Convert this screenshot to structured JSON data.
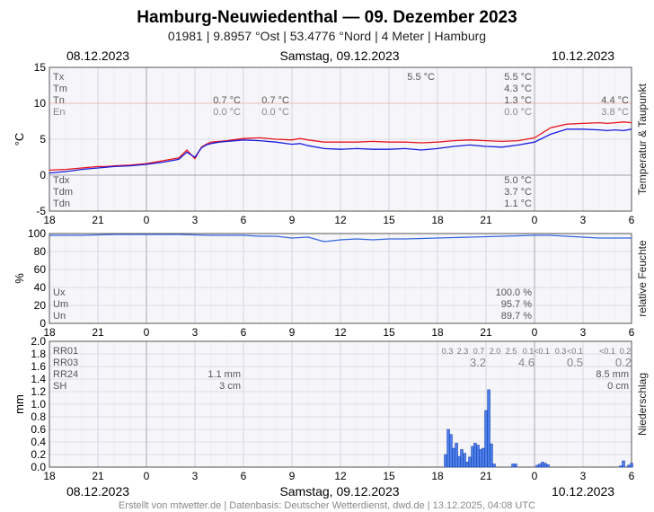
{
  "header": {
    "title": "Hamburg-Neuwiedenthal  —  09. Dezember 2023",
    "subtitle": "01981  |  9.8957 °Ost  |  53.4776 °Nord  |  4 Meter  |  Hamburg"
  },
  "dates": {
    "left": "08.12.2023",
    "center": "Samstag, 09.12.2023",
    "right": "10.12.2023"
  },
  "footer": "Erstellt von mtwetter.de | Datenbasis: Deutscher Wetterdienst, dwd.de | 13.12.2025, 04:08 UTC",
  "colors": {
    "temp": "#e8141b",
    "dew": "#1a1adc",
    "dark": "#7a1030",
    "hum": "#3366dd",
    "bar": "#4a7ee8",
    "barEdge": "#1c3fae"
  },
  "chart_data": [
    {
      "type": "line",
      "ylabel": "°C",
      "side_label": "Temperatur & Taupunkt",
      "ylim": [
        -5,
        15
      ],
      "yticks": [
        -5,
        0,
        5,
        10,
        15
      ],
      "x_hours_from": 18,
      "x_ticklabels": [
        "18",
        "21",
        "0",
        "3",
        "6",
        "9",
        "12",
        "15",
        "18",
        "21",
        "0",
        "3",
        "6"
      ],
      "series": [
        {
          "name": "temperature",
          "x": [
            0,
            1,
            2,
            3,
            3.5,
            4,
            5,
            6,
            7,
            8,
            8.5,
            9,
            9.4,
            9.7,
            10,
            10.5,
            11,
            12,
            13,
            14,
            15,
            15.5,
            16,
            17,
            18,
            19,
            20,
            21,
            22,
            23,
            24,
            25,
            26,
            27,
            28,
            29,
            30,
            31,
            32,
            33,
            34,
            34.5,
            35,
            35.5,
            36
          ],
          "y": [
            0.7,
            0.8,
            1.0,
            1.2,
            1.2,
            1.3,
            1.4,
            1.6,
            2.0,
            2.4,
            3.5,
            2.3,
            3.9,
            4.3,
            4.6,
            4.7,
            4.8,
            5.1,
            5.2,
            5.0,
            4.9,
            5.1,
            4.9,
            4.6,
            4.6,
            4.6,
            4.7,
            4.6,
            4.6,
            4.5,
            4.6,
            4.8,
            4.9,
            4.8,
            4.7,
            4.8,
            5.2,
            6.6,
            7.1,
            7.2,
            7.3,
            7.2,
            7.3,
            7.4,
            7.3
          ]
        },
        {
          "name": "dew_point",
          "x": [
            0,
            1,
            2,
            3,
            3.5,
            4,
            5,
            6,
            7,
            8,
            8.5,
            9,
            9.4,
            9.7,
            10,
            10.5,
            11,
            12,
            13,
            14,
            15,
            15.5,
            16,
            17,
            18,
            19,
            20,
            21,
            22,
            23,
            24,
            25,
            26,
            27,
            28,
            29,
            30,
            31,
            32,
            33,
            34,
            34.5,
            35,
            35.5,
            36
          ],
          "y": [
            0.3,
            0.5,
            0.8,
            1.0,
            1.1,
            1.2,
            1.3,
            1.5,
            1.8,
            2.2,
            3.2,
            2.5,
            3.8,
            4.2,
            4.4,
            4.6,
            4.7,
            4.9,
            4.8,
            4.6,
            4.3,
            4.4,
            4.1,
            3.7,
            3.6,
            3.7,
            3.6,
            3.6,
            3.7,
            3.5,
            3.7,
            4.0,
            4.2,
            4.0,
            3.9,
            4.2,
            4.6,
            5.7,
            6.4,
            6.4,
            6.3,
            6.2,
            6.3,
            6.2,
            6.4
          ]
        }
      ],
      "annotations": {
        "labels_top": [
          "Tx",
          "Tm",
          "Tn",
          "En"
        ],
        "labels_bottom": [
          "Tdx",
          "Tdm",
          "Tdn"
        ],
        "day0_Tn": "0.7 °C",
        "day0_En": "0.0 °C",
        "day1_Tn": "0.7 °C",
        "day1_En": "0.0 °C",
        "mid_Tx": "5.5 °C",
        "day2_Tx": "5.5 °C",
        "day2_Tm": "4.3 °C",
        "day2_Tn": "1.3 °C",
        "day2_En": "0.0 °C",
        "day3_Tn": "4.4 °C",
        "day3_En": "3.8 °C",
        "day2_Tdx": "5.0 °C",
        "day2_Tdm": "3.7 °C",
        "day2_Tdn": "1.1 °C"
      }
    },
    {
      "type": "line",
      "ylabel": "%",
      "side_label": "relative Feuchte",
      "ylim": [
        0,
        100
      ],
      "yticks": [
        0,
        20,
        40,
        60,
        80,
        100
      ],
      "series": [
        {
          "name": "relative_humidity",
          "x": [
            0,
            2,
            4,
            6,
            8,
            10,
            12,
            13,
            14,
            15,
            16,
            17,
            18,
            19,
            20,
            21,
            22,
            24,
            26,
            28,
            30,
            31,
            32,
            33,
            34,
            35,
            36
          ],
          "y": [
            98,
            98,
            99,
            99,
            99,
            98,
            98,
            97,
            97,
            95,
            96,
            91,
            93,
            94,
            93,
            94,
            94,
            95,
            96,
            97,
            98,
            98,
            97,
            96,
            95,
            95,
            95
          ]
        }
      ],
      "annotations": {
        "labels": [
          "Ux",
          "Um",
          "Un"
        ],
        "Ux": "100.0 %",
        "Um": "95.7 %",
        "Un": "89.7 %"
      }
    },
    {
      "type": "bar",
      "ylabel": "mm",
      "side_label": "Niederschlag",
      "ylim": [
        0,
        2.0
      ],
      "yticks": [
        0.0,
        0.2,
        0.4,
        0.6,
        0.8,
        1.0,
        1.2,
        1.4,
        1.6,
        1.8,
        2.0
      ],
      "bar_width_h": 0.1667,
      "bars_x": [
        24.5,
        24.67,
        24.83,
        25.0,
        25.17,
        25.33,
        25.5,
        25.67,
        25.83,
        26.0,
        26.17,
        26.33,
        26.5,
        26.67,
        26.83,
        27.0,
        27.17,
        27.33,
        27.5,
        28.67,
        28.83,
        30.17,
        30.33,
        30.5,
        30.67,
        30.83,
        35.33,
        35.5,
        35.83,
        36.0
      ],
      "bars_y": [
        0.2,
        0.6,
        0.52,
        0.3,
        0.38,
        0.17,
        0.28,
        0.22,
        0.08,
        0.16,
        0.33,
        0.38,
        0.35,
        0.28,
        0.3,
        0.9,
        1.23,
        0.37,
        0.05,
        0.05,
        0.05,
        0.03,
        0.05,
        0.08,
        0.06,
        0.04,
        0.02,
        0.1,
        0.03,
        0.06
      ],
      "annotations": {
        "labels": [
          "RR01",
          "RR03",
          "RR24",
          "SH"
        ],
        "day1_RR24": "1.1 mm",
        "day1_SH": "3 cm",
        "rr01_values": [
          "0.3",
          "2.3",
          "0.7",
          "2.0",
          "2.5",
          "0.1",
          "<0.1",
          "0.3",
          "<0.1",
          "<0.1",
          "0.2"
        ],
        "rr03_values": [
          "3.2",
          "4.6",
          "0.5",
          "0.2"
        ],
        "day3_RR24": "8.5 mm",
        "day3_SH": "0 cm"
      }
    }
  ]
}
